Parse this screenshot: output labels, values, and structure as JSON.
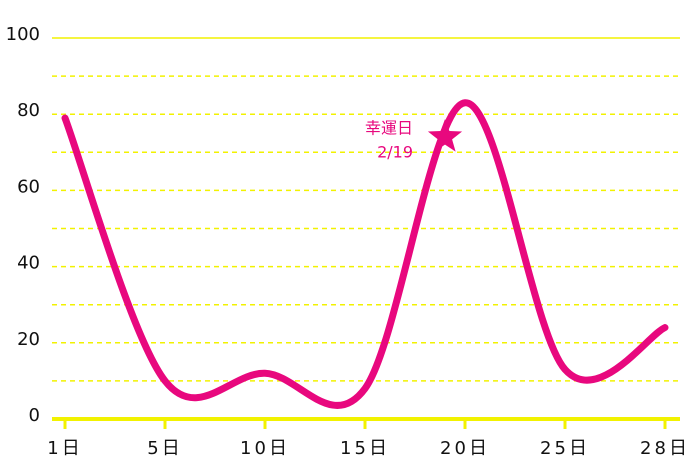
{
  "chart_data": {
    "type": "line",
    "categories": [
      "1日",
      "5日",
      "10日",
      "15日",
      "20日",
      "25日",
      "28日"
    ],
    "series": [
      {
        "color": "#e8087e",
        "values": [
          79,
          10,
          12,
          8,
          83,
          13,
          24
        ]
      }
    ],
    "ylim": [
      0,
      100
    ],
    "yticks": [
      0,
      20,
      40,
      60,
      80,
      100
    ],
    "minor_yticks": [
      10,
      30,
      50,
      70,
      90
    ],
    "grid": true,
    "grid_color": "#f2f200",
    "annotation": {
      "lines": [
        "幸運日",
        "2/19"
      ],
      "value": 74,
      "color": "#e8087e"
    }
  }
}
